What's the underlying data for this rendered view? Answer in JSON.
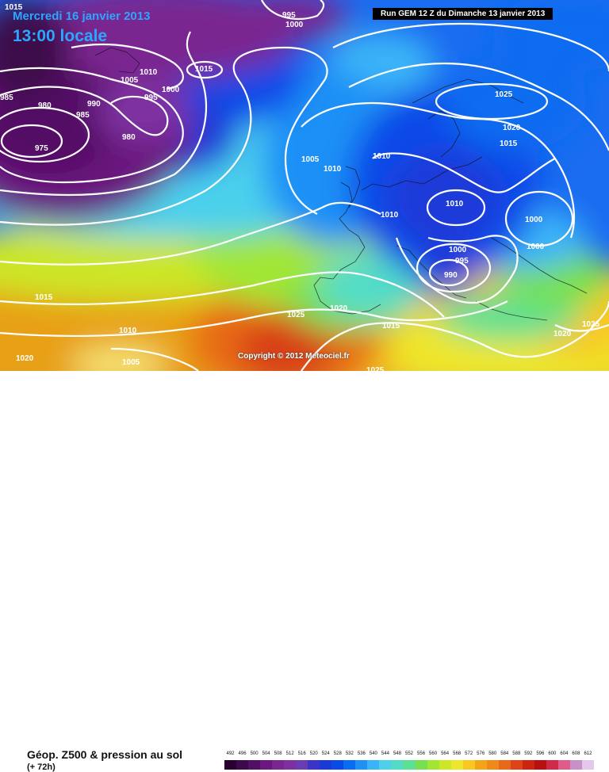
{
  "header": {
    "date": "Mercredi 16 janvier 2013",
    "time": "13:00 locale",
    "run": "Run GEM 12 Z du Dimanche 13 janvier 2013"
  },
  "copyright": "Copyright © 2012 Meteociel.fr",
  "legend": {
    "title": "Géop. Z500 & pression au sol",
    "subtitle": "(+ 72h)",
    "scale_labels": [
      "492",
      "496",
      "500",
      "504",
      "508",
      "512",
      "516",
      "520",
      "524",
      "528",
      "532",
      "536",
      "540",
      "544",
      "548",
      "552",
      "556",
      "560",
      "564",
      "568",
      "572",
      "576",
      "580",
      "584",
      "588",
      "592",
      "596",
      "600",
      "604",
      "608",
      "612"
    ],
    "scale_colors": [
      "#2a0030",
      "#3c0a4a",
      "#521065",
      "#6a187e",
      "#7a2690",
      "#7e30a0",
      "#6a3cb4",
      "#3a34c8",
      "#1a3ad8",
      "#0a4ae8",
      "#0a6cf0",
      "#1e90f6",
      "#3ab4f8",
      "#4cd0ec",
      "#52dcc8",
      "#5ce094",
      "#78e050",
      "#a2e634",
      "#cce628",
      "#eee62a",
      "#f8c820",
      "#f4a418",
      "#ee8a18",
      "#e86a18",
      "#de4418",
      "#cc2410",
      "#b81010",
      "#d02a4a",
      "#e05a8a",
      "#c890c8",
      "#e4c8ec"
    ]
  },
  "isobars": [
    {
      "value": "1015",
      "pos": "top-left corner"
    },
    {
      "value": "995",
      "pos": "top center"
    },
    {
      "value": "1000",
      "pos": "top center"
    },
    {
      "value": "1010",
      "pos": "north atlantic"
    },
    {
      "value": "1015",
      "pos": "north atlantic"
    },
    {
      "value": "1005",
      "pos": "north atlantic"
    },
    {
      "value": "1000",
      "pos": "north atlantic"
    },
    {
      "value": "995",
      "pos": "north atlantic"
    },
    {
      "value": "985",
      "pos": "left edge"
    },
    {
      "value": "980",
      "pos": "west low"
    },
    {
      "value": "990",
      "pos": "west low"
    },
    {
      "value": "985",
      "pos": "west low"
    },
    {
      "value": "975",
      "pos": "west low center"
    },
    {
      "value": "980",
      "pos": "west low"
    },
    {
      "value": "1005",
      "pos": "mid atlantic"
    },
    {
      "value": "1010",
      "pos": "british isles"
    },
    {
      "value": "1010",
      "pos": "north sea"
    },
    {
      "value": "1025",
      "pos": "scandinavia"
    },
    {
      "value": "1020",
      "pos": "scandinavia"
    },
    {
      "value": "1015",
      "pos": "scandinavia"
    },
    {
      "value": "1010",
      "pos": "france"
    },
    {
      "value": "1010",
      "pos": "germany"
    },
    {
      "value": "1000",
      "pos": "east europe"
    },
    {
      "value": "1000",
      "pos": "east europe"
    },
    {
      "value": "1000",
      "pos": "italy"
    },
    {
      "value": "995",
      "pos": "italy"
    },
    {
      "value": "990",
      "pos": "italy low"
    },
    {
      "value": "1015",
      "pos": "west atlantic"
    },
    {
      "value": "1020",
      "pos": "iberia"
    },
    {
      "value": "1025",
      "pos": "iberia"
    },
    {
      "value": "1015",
      "pos": "mediterranean"
    },
    {
      "value": "1010",
      "pos": "south atlantic"
    },
    {
      "value": "1005",
      "pos": "south atlantic"
    },
    {
      "value": "1020",
      "pos": "bottom left"
    },
    {
      "value": "1025",
      "pos": "bottom center"
    },
    {
      "value": "1020",
      "pos": "east med"
    },
    {
      "value": "1025",
      "pos": "east edge"
    }
  ]
}
